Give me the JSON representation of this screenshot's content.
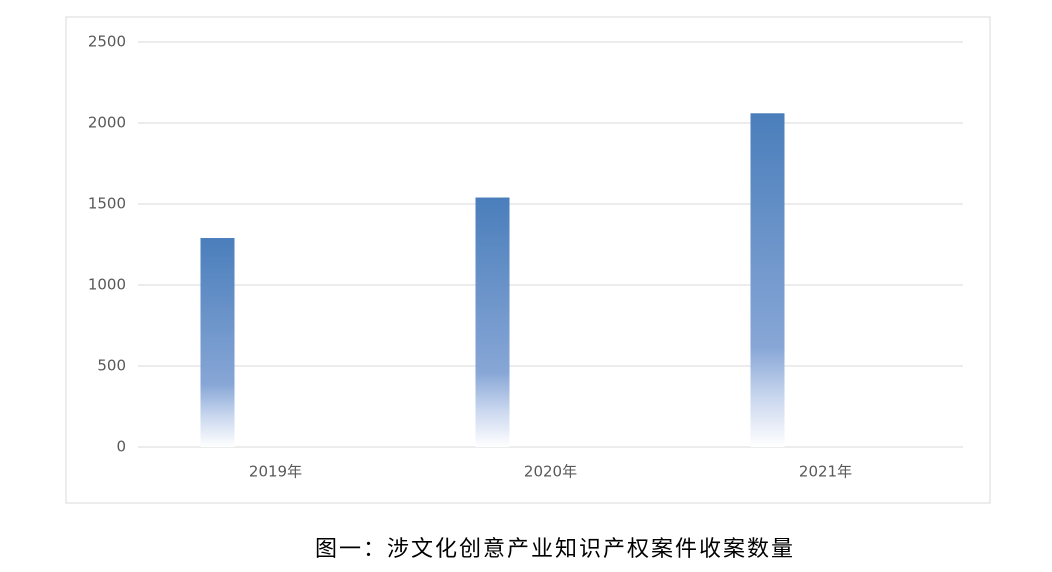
{
  "chart_data": {
    "type": "bar",
    "categories": [
      "2019年",
      "2020年",
      "2021年"
    ],
    "values": [
      1290,
      1540,
      2060
    ],
    "color": "#4a7ebb",
    "ylim": [
      0,
      2500
    ],
    "yticks": [
      0,
      500,
      1000,
      1500,
      2000,
      2500
    ],
    "grid": true,
    "caption": "图一：涉文化创意产业知识产权案件收案数量"
  }
}
